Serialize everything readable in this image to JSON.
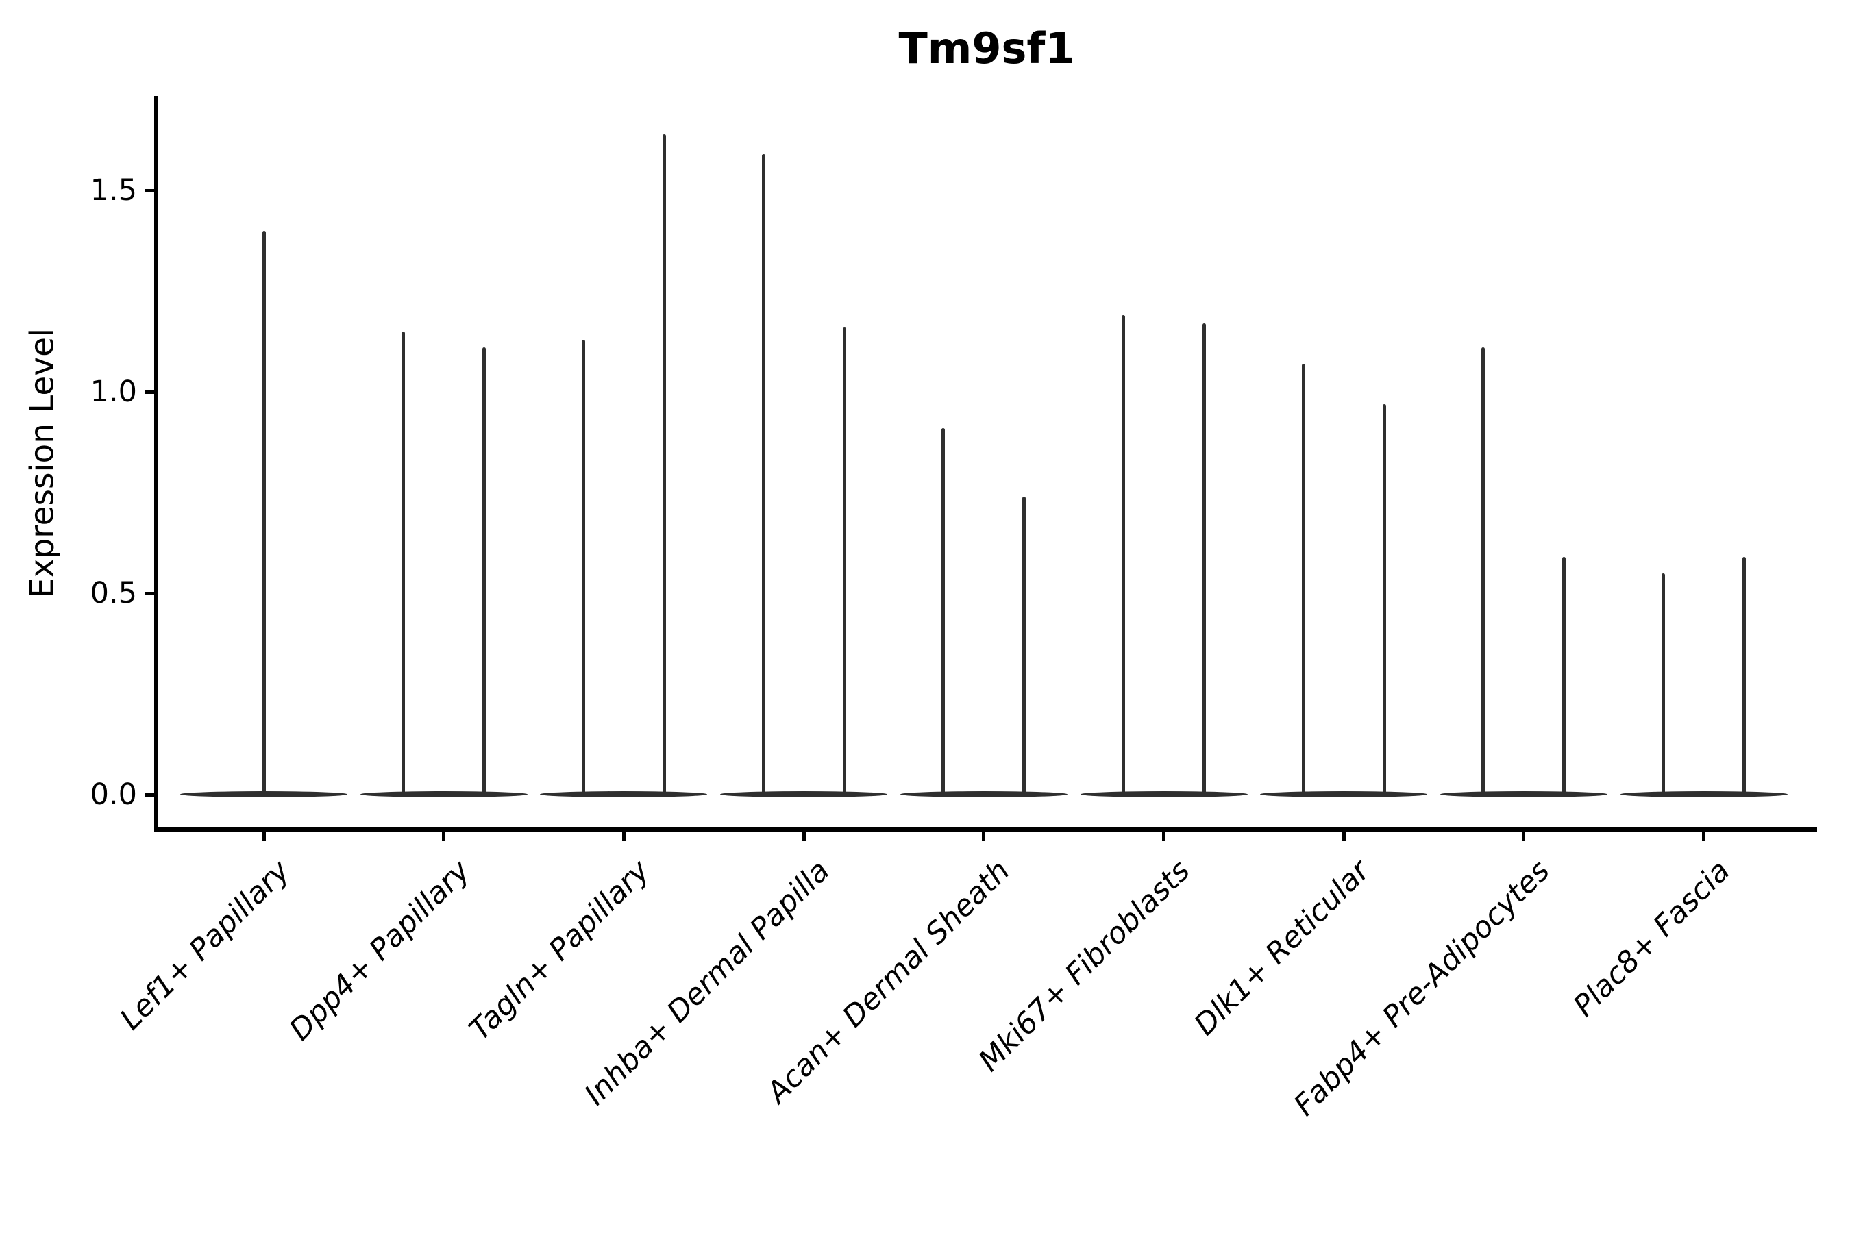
{
  "chart_data": {
    "type": "violin",
    "title": "Tm9sf1",
    "ylabel": "Expression Level",
    "xlabel": "",
    "ylim": [
      0,
      1.73
    ],
    "yticks": [
      0.0,
      0.5,
      1.0,
      1.5
    ],
    "ytick_labels": [
      "0.0",
      "0.5",
      "1.0",
      "1.5"
    ],
    "grid": false,
    "legend": null,
    "x_tick_rotation_deg": 45,
    "violin_color": "#2f2f2f",
    "axis_color": "#000000",
    "background_color": "#ffffff",
    "categories": [
      "Lef1+ Papillary",
      "Dpp4+ Papillary",
      "Tagln+ Papillary",
      "Inhba+ Dermal Papilla",
      "Acan+ Dermal Sheath",
      "Mki67+ Fibroblasts",
      "Dlk1+ Reticular",
      "Fabp4+ Pre-Adipocytes",
      "Plac8+ Fascia"
    ],
    "violins": [
      {
        "category": "Lef1+ Papillary",
        "baseline_value": 0.0,
        "spike_max_values": [
          1.4
        ]
      },
      {
        "category": "Dpp4+ Papillary",
        "baseline_value": 0.0,
        "spike_max_values": [
          1.15,
          1.11
        ]
      },
      {
        "category": "Tagln+ Papillary",
        "baseline_value": 0.0,
        "spike_max_values": [
          1.13,
          1.64
        ]
      },
      {
        "category": "Inhba+ Dermal Papilla",
        "baseline_value": 0.0,
        "spike_max_values": [
          1.59,
          1.16
        ]
      },
      {
        "category": "Acan+ Dermal Sheath",
        "baseline_value": 0.0,
        "spike_max_values": [
          0.91,
          0.74
        ]
      },
      {
        "category": "Mki67+ Fibroblasts",
        "baseline_value": 0.0,
        "spike_max_values": [
          1.19,
          1.17
        ]
      },
      {
        "category": "Dlk1+ Reticular",
        "baseline_value": 0.0,
        "spike_max_values": [
          1.07,
          0.97
        ]
      },
      {
        "category": "Fabp4+ Pre-Adipocytes",
        "baseline_value": 0.0,
        "spike_max_values": [
          1.11,
          0.59
        ]
      },
      {
        "category": "Plac8+ Fascia",
        "baseline_value": 0.0,
        "spike_max_values": [
          0.55,
          0.59
        ]
      }
    ]
  }
}
